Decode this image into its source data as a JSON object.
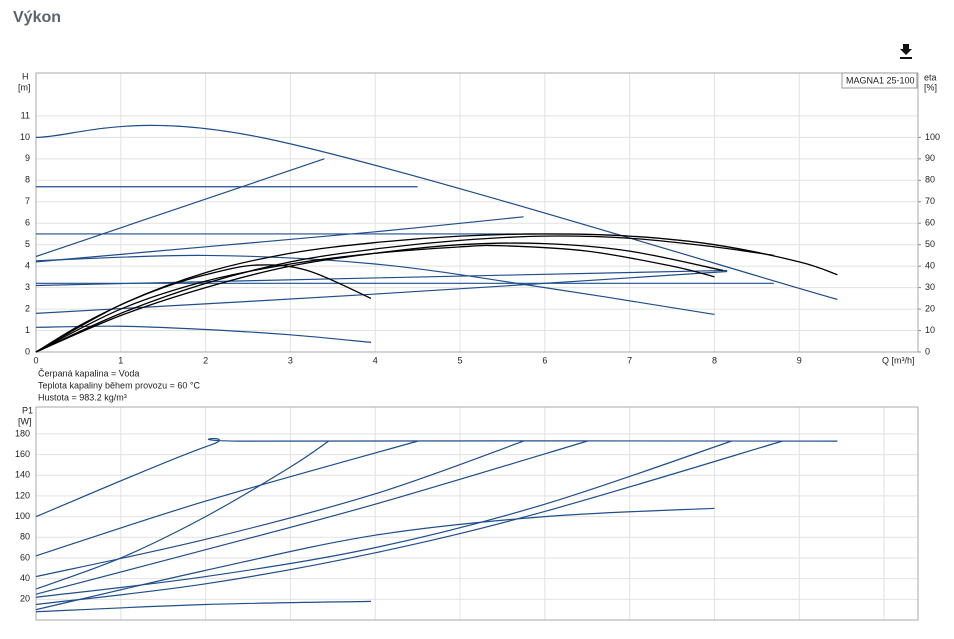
{
  "header": {
    "title": "Výkon"
  },
  "chart_data": [
    {
      "type": "line",
      "y_label": "H",
      "y_unit": "[m]",
      "y2_label": "eta",
      "y2_unit": "[%]",
      "x_label": "Q [m³/h]",
      "legend_label": "MAGNA1 25-100",
      "notes": [
        "Čerpaná kapalina = Voda",
        "Teplota kapaliny během provozu = 60 °C",
        "Hustota = 983.2 kg/m³"
      ],
      "xlim": [
        0,
        10.4
      ],
      "xticks": [
        0,
        1,
        2,
        3,
        4,
        5,
        6,
        7,
        8,
        9
      ],
      "show_xtick_labels": true,
      "ylim": [
        0,
        13
      ],
      "yticks": [
        0,
        1,
        2,
        3,
        4,
        5,
        6,
        7,
        8,
        9,
        10,
        11
      ],
      "y2lim": [
        0,
        130
      ],
      "y2ticks": [
        0,
        10,
        20,
        30,
        40,
        50,
        60,
        70,
        80,
        90,
        100
      ],
      "grid": true,
      "series": [
        {
          "color": "#1f4e8c",
          "x": [
            0,
            2.65,
            9.45
          ],
          "values": [
            10,
            10,
            2.45
          ]
        },
        {
          "color": "#1f4e8c",
          "x": [
            0,
            4.5
          ],
          "values": [
            7.7,
            7.7
          ]
        },
        {
          "color": "#1f4e8c",
          "x": [
            0,
            5.9
          ],
          "values": [
            5.5,
            5.5
          ]
        },
        {
          "color": "#1f4e8c",
          "x": [
            0,
            8.7
          ],
          "values": [
            3.2,
            3.2
          ]
        },
        {
          "color": "#1f4e8c",
          "x": [
            0,
            3.4
          ],
          "values": [
            4.45,
            9
          ]
        },
        {
          "color": "#1f4e8c",
          "x": [
            0,
            2,
            4,
            5.75
          ],
          "values": [
            4.2,
            4.9,
            5.6,
            6.3
          ]
        },
        {
          "color": "#1f4e8c",
          "x": [
            0,
            4,
            8.15
          ],
          "values": [
            3.1,
            3.45,
            3.8
          ]
        },
        {
          "color": "#1f4e8c",
          "x": [
            0,
            4,
            8.15
          ],
          "values": [
            1.8,
            2.7,
            3.75
          ]
        },
        {
          "color": "#1f4e8c",
          "x": [
            0,
            2,
            4,
            6,
            8.0
          ],
          "values": [
            4.25,
            4.5,
            4.1,
            3.0,
            1.75
          ]
        },
        {
          "color": "#1f4e8c",
          "x": [
            0,
            1,
            2,
            3,
            3.95
          ],
          "values": [
            1.15,
            1.2,
            1.05,
            0.8,
            0.45
          ]
        },
        {
          "color": "#000000",
          "axis": "y2",
          "x": [
            0,
            0.5,
            1,
            1.5,
            2,
            2.6,
            3.2,
            3.95
          ],
          "values": [
            0,
            12,
            22,
            30,
            36,
            40.5,
            38,
            25
          ]
        },
        {
          "color": "#000000",
          "axis": "y2",
          "x": [
            0,
            1,
            2,
            3,
            4,
            5,
            5.5,
            6.5,
            7.5,
            8.0
          ],
          "values": [
            0,
            20,
            33,
            41,
            46,
            49,
            49.5,
            47,
            40,
            35
          ]
        },
        {
          "color": "#000000",
          "axis": "y2",
          "x": [
            0,
            1,
            2,
            3,
            4,
            5,
            6,
            7,
            8,
            9,
            9.45
          ],
          "values": [
            0,
            22,
            37,
            46,
            51,
            54,
            55,
            54,
            50,
            42,
            36
          ]
        },
        {
          "color": "#000000",
          "axis": "y2",
          "x": [
            0,
            1,
            2,
            3,
            4,
            5,
            6,
            7,
            8,
            8.7
          ],
          "values": [
            0,
            18,
            32,
            42,
            48,
            52,
            54,
            53,
            49,
            45
          ]
        },
        {
          "color": "#000000",
          "axis": "y2",
          "x": [
            0,
            1,
            2,
            3,
            4,
            5,
            6,
            7,
            8.1
          ],
          "values": [
            0,
            17,
            30,
            40,
            46,
            50,
            50.5,
            47,
            38
          ]
        }
      ]
    },
    {
      "type": "line",
      "y_label": "P1",
      "y_unit": "[W]",
      "xlim": [
        0,
        10.4
      ],
      "xticks": [
        0,
        1,
        2,
        3,
        4,
        5,
        6,
        7,
        8,
        9,
        10
      ],
      "show_xtick_labels": false,
      "ylim": [
        0,
        206
      ],
      "yticks": [
        20,
        40,
        60,
        80,
        100,
        120,
        140,
        160,
        180
      ],
      "grid": true,
      "series": [
        {
          "color": "#1f4e8c",
          "x": [
            0,
            2.05,
            2.65,
            9.45
          ],
          "values": [
            100,
            169,
            173,
            173
          ]
        },
        {
          "color": "#1f4e8c",
          "x": [
            0,
            2,
            4.5
          ],
          "values": [
            62,
            115,
            173
          ]
        },
        {
          "color": "#1f4e8c",
          "x": [
            0,
            2,
            4,
            5.75
          ],
          "values": [
            42,
            78,
            122,
            173
          ]
        },
        {
          "color": "#1f4e8c",
          "x": [
            0,
            1,
            2,
            3,
            3.45
          ],
          "values": [
            30,
            60,
            100,
            148,
            173
          ]
        },
        {
          "color": "#1f4e8c",
          "x": [
            0,
            2,
            4,
            6.5
          ],
          "values": [
            25,
            68,
            112,
            173
          ]
        },
        {
          "color": "#1f4e8c",
          "x": [
            0,
            2,
            4,
            6,
            8.2
          ],
          "values": [
            22,
            42,
            70,
            112,
            173
          ]
        },
        {
          "color": "#1f4e8c",
          "x": [
            0,
            2,
            4,
            6,
            8.8
          ],
          "values": [
            15,
            35,
            65,
            105,
            173
          ]
        },
        {
          "color": "#1f4e8c",
          "x": [
            0,
            2,
            4,
            6,
            8.0
          ],
          "values": [
            10,
            48,
            82,
            100,
            108
          ]
        },
        {
          "color": "#1f4e8c",
          "x": [
            0,
            2,
            3.95
          ],
          "values": [
            8,
            15,
            18
          ]
        }
      ]
    }
  ]
}
